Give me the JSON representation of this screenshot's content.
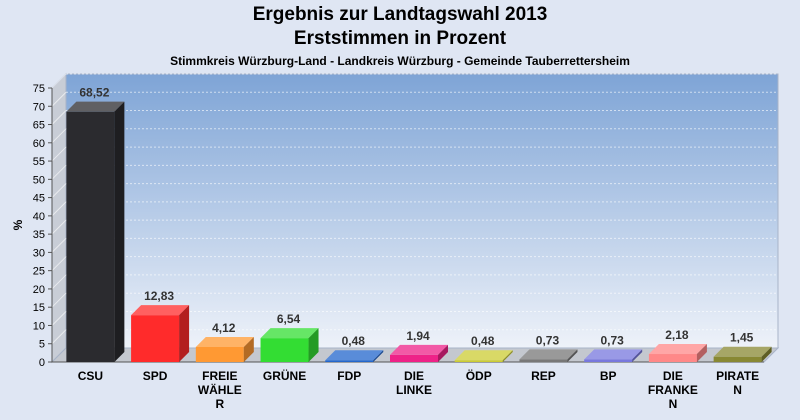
{
  "title": "Ergebnis zur Landtagswahl 2013",
  "subtitle": "Erststimmen in Prozent",
  "subsubtitle": "Stimmkreis Würzburg-Land - Landkreis Würzburg - Gemeinde Tauberrettersheim",
  "chart_data": {
    "type": "bar",
    "title": "Ergebnis zur Landtagswahl 2013",
    "ylabel": "%",
    "ylim": [
      0,
      75
    ],
    "yticks": [
      0,
      5,
      10,
      15,
      20,
      25,
      30,
      35,
      40,
      45,
      50,
      55,
      60,
      65,
      70,
      75
    ],
    "categories": [
      [
        "CSU"
      ],
      [
        "SPD"
      ],
      [
        "FREIE",
        "WÄHLE",
        "R"
      ],
      [
        "GRÜNE"
      ],
      [
        "FDP"
      ],
      [
        "DIE",
        "LINKE"
      ],
      [
        "ÖDP"
      ],
      [
        "REP"
      ],
      [
        "BP"
      ],
      [
        "DIE",
        "FRANKE",
        "N"
      ],
      [
        "PIRATE",
        "N"
      ]
    ],
    "values": [
      68.52,
      12.83,
      4.12,
      6.54,
      0.48,
      1.94,
      0.48,
      0.73,
      0.73,
      2.18,
      1.45
    ],
    "value_labels": [
      "68,52",
      "12,83",
      "4,12",
      "6,54",
      "0,48",
      "1,94",
      "0,48",
      "0,73",
      "0,73",
      "2,18",
      "1,45"
    ],
    "colors": [
      "#2b2b2f",
      "#ff2b2b",
      "#ff9933",
      "#33dd33",
      "#2266cc",
      "#ee2288",
      "#cccc33",
      "#777777",
      "#7777dd",
      "#ff8888",
      "#888833"
    ],
    "grid": true,
    "legend": "none"
  }
}
